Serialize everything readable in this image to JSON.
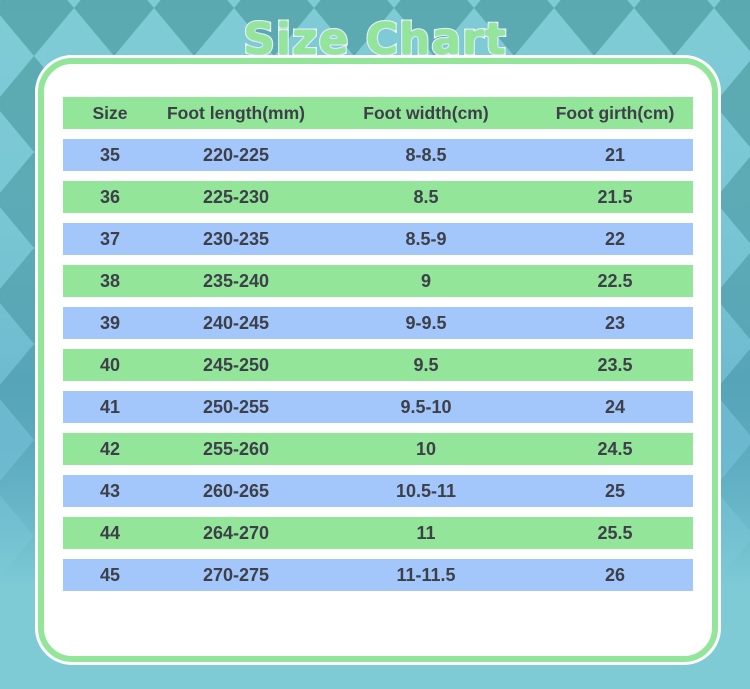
{
  "title": "Size Chart",
  "colors": {
    "background_light": "#7ecbd6",
    "background_dark": "#5aa9b0",
    "accent_green": "#93e59a",
    "row_blue": "#a3c6fb",
    "text": "#3d4048"
  },
  "table": {
    "headers": [
      "Size",
      "Foot length(mm)",
      "Foot width(cm)",
      "Foot girth(cm)"
    ],
    "rows": [
      [
        "35",
        "220-225",
        "8-8.5",
        "21"
      ],
      [
        "36",
        "225-230",
        "8.5",
        "21.5"
      ],
      [
        "37",
        "230-235",
        "8.5-9",
        "22"
      ],
      [
        "38",
        "235-240",
        "9",
        "22.5"
      ],
      [
        "39",
        "240-245",
        "9-9.5",
        "23"
      ],
      [
        "40",
        "245-250",
        "9.5",
        "23.5"
      ],
      [
        "41",
        "250-255",
        "9.5-10",
        "24"
      ],
      [
        "42",
        "255-260",
        "10",
        "24.5"
      ],
      [
        "43",
        "260-265",
        "10.5-11",
        "25"
      ],
      [
        "44",
        "264-270",
        "11",
        "25.5"
      ],
      [
        "45",
        "270-275",
        "11-11.5",
        "26"
      ]
    ]
  }
}
